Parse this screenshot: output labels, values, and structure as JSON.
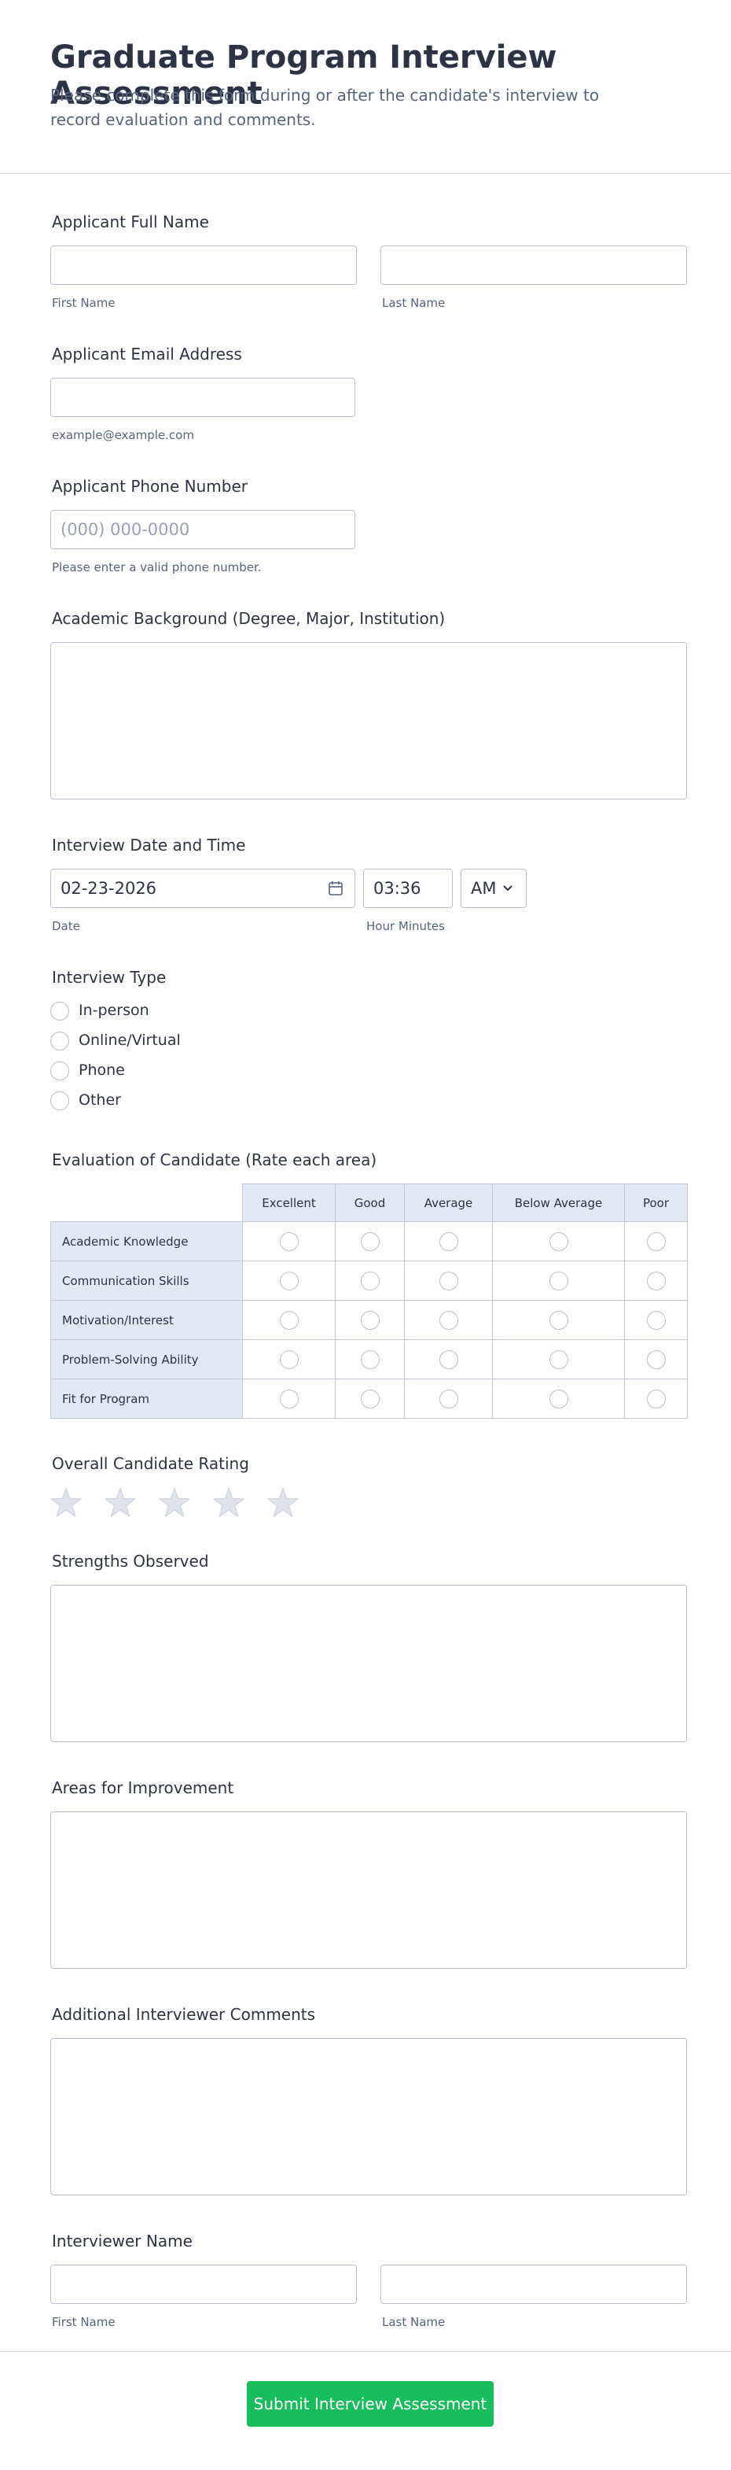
{
  "header": {
    "title": "Graduate Program Interview Assessment",
    "subtitle": "Please complete this form during or after the candidate's interview to record evaluation and comments."
  },
  "full_name": {
    "label": "Applicant Full Name",
    "first": "First Name",
    "last": "Last Name"
  },
  "email": {
    "label": "Applicant Email Address",
    "hint": "example@example.com"
  },
  "phone": {
    "label": "Applicant Phone Number",
    "placeholder": "(000) 000-0000",
    "hint": "Please enter a valid phone number."
  },
  "academic": {
    "label": "Academic Background (Degree, Major, Institution)"
  },
  "interview_datetime": {
    "label": "Interview Date and Time",
    "date": "02-23-2026",
    "time": "03:36",
    "ampm": "AM",
    "date_hint": "Date",
    "time_hint": "Hour Minutes"
  },
  "interview_type": {
    "label": "Interview Type",
    "options": [
      "In-person",
      "Online/Virtual",
      "Phone",
      "Other"
    ]
  },
  "evaluation": {
    "label": "Evaluation of Candidate (Rate each area)",
    "columns": [
      "Excellent",
      "Good",
      "Average",
      "Below Average",
      "Poor"
    ],
    "rows": [
      "Academic Knowledge",
      "Communication Skills",
      "Motivation/Interest",
      "Problem-Solving Ability",
      "Fit for Program"
    ]
  },
  "rating": {
    "label": "Overall Candidate Rating"
  },
  "strengths": {
    "label": "Strengths Observed"
  },
  "improvement": {
    "label": "Areas for Improvement"
  },
  "comments": {
    "label": "Additional Interviewer Comments"
  },
  "interviewer_name": {
    "label": "Interviewer Name",
    "first": "First Name",
    "last": "Last Name"
  },
  "submit": "Submit Interview Assessment"
}
